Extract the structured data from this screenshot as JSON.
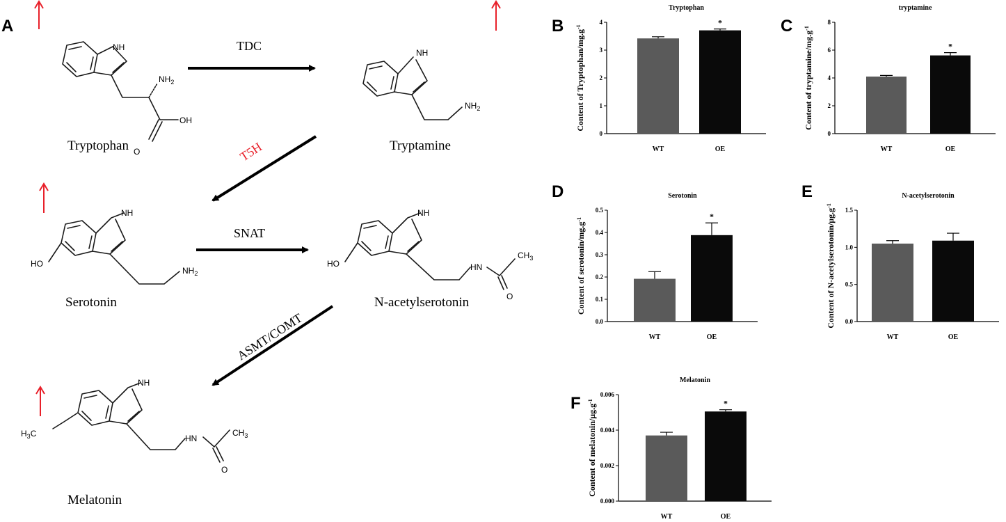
{
  "panel_letters": {
    "a": "A",
    "b": "B",
    "c": "C",
    "d": "D",
    "e": "E",
    "f": "F"
  },
  "pathway": {
    "compounds": {
      "tryptophan": "Tryptophan",
      "tryptamine": "Tryptamine",
      "serotonin": "Serotonin",
      "n_acetylserotonin": "N-acetylserotonin",
      "melatonin": "Melatonin"
    },
    "enzymes": {
      "tdc": "TDC",
      "t5h": "T5H",
      "snat": "SNAT",
      "asmt_comt": "ASMT/COMT"
    },
    "atom_labels": {
      "nh": "NH",
      "nh2": "NH2",
      "oh": "OH",
      "o": "O",
      "ho": "HO",
      "hn": "HN",
      "ch3": "CH3",
      "h3c": "H3C"
    },
    "colors": {
      "highlight": "#e8202a",
      "arrow": "#000000"
    }
  },
  "chart_data": [
    {
      "id": "B",
      "type": "bar",
      "title": "Tryptophan",
      "ylabel": "Content of Tryptophan/mg.g-1",
      "categories": [
        "WT",
        "OE"
      ],
      "values": [
        3.42,
        3.71
      ],
      "errors": [
        0.06,
        0.05
      ],
      "significance": [
        "",
        "*"
      ],
      "ylim": [
        0,
        4
      ],
      "yticks": [
        "0",
        "1",
        "2",
        "3",
        "4"
      ],
      "bar_colors": [
        "#5a5a5a",
        "#0a0a0a"
      ]
    },
    {
      "id": "C",
      "type": "bar",
      "title": "tryptamine",
      "ylabel": "Content of tryptamine/mg.g-1",
      "categories": [
        "WT",
        "OE"
      ],
      "values": [
        4.1,
        5.62
      ],
      "errors": [
        0.08,
        0.2
      ],
      "significance": [
        "",
        "*"
      ],
      "ylim": [
        0,
        8
      ],
      "yticks": [
        "0",
        "2",
        "4",
        "6",
        "8"
      ],
      "bar_colors": [
        "#5a5a5a",
        "#0a0a0a"
      ]
    },
    {
      "id": "D",
      "type": "bar",
      "title": "Serotonin",
      "ylabel": "Content of serotonin/mg.g-1",
      "categories": [
        "WT",
        "OE"
      ],
      "values": [
        0.192,
        0.388
      ],
      "errors": [
        0.032,
        0.055
      ],
      "significance": [
        "",
        "*"
      ],
      "ylim": [
        0,
        0.5
      ],
      "yticks": [
        "0.0",
        "0.1",
        "0.2",
        "0.3",
        "0.4",
        "0.5"
      ],
      "bar_colors": [
        "#5a5a5a",
        "#0a0a0a"
      ]
    },
    {
      "id": "E",
      "type": "bar",
      "title": "N-acetylserotonin",
      "ylabel": "Content of N-acetylserotonin/μg.g-1",
      "categories": [
        "WT",
        "OE"
      ],
      "values": [
        1.05,
        1.09
      ],
      "errors": [
        0.04,
        0.1
      ],
      "significance": [
        "",
        ""
      ],
      "ylim": [
        0,
        1.5
      ],
      "yticks": [
        "0.0",
        "0.5",
        "1.0",
        "1.5"
      ],
      "bar_colors": [
        "#5a5a5a",
        "#0a0a0a"
      ]
    },
    {
      "id": "F",
      "type": "bar",
      "title": "Melatonin",
      "ylabel": "Content of melatonin/μg.g-1",
      "categories": [
        "WT",
        "OE"
      ],
      "values": [
        0.0037,
        0.00505
      ],
      "errors": [
        0.00018,
        0.0001
      ],
      "significance": [
        "",
        "*"
      ],
      "ylim": [
        0,
        0.006
      ],
      "yticks": [
        "0.000",
        "0.002",
        "0.004",
        "0.006"
      ],
      "bar_colors": [
        "#5a5a5a",
        "#0a0a0a"
      ]
    }
  ]
}
